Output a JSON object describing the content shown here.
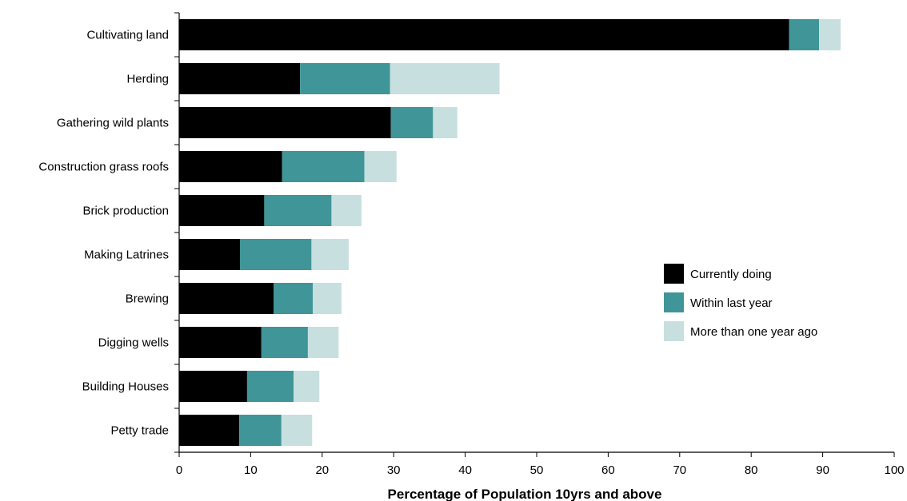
{
  "chart_data": {
    "type": "bar",
    "orientation": "horizontal",
    "stacked": true,
    "title": "",
    "xlabel": "Percentage of Population 10yrs and above",
    "ylabel": "",
    "xlim": [
      0,
      100
    ],
    "xticks": [
      0,
      10,
      20,
      30,
      40,
      50,
      60,
      70,
      80,
      90,
      100
    ],
    "grid": false,
    "legend_position": "right",
    "categories": [
      "Cultivating land",
      "Herding",
      "Gathering wild plants",
      "Construction grass roofs",
      "Brick production",
      "Making Latrines",
      "Brewing",
      "Digging wells",
      "Building Houses",
      "Petty trade"
    ],
    "series": [
      {
        "name": "Currently doing",
        "color": "#000000",
        "values": [
          85.3,
          16.9,
          29.6,
          14.4,
          11.9,
          8.5,
          13.2,
          11.5,
          9.5,
          8.4
        ]
      },
      {
        "name": "Within last year",
        "color": "#3f9597",
        "values": [
          4.2,
          12.6,
          5.9,
          11.5,
          9.4,
          10.0,
          5.5,
          6.5,
          6.5,
          5.9
        ]
      },
      {
        "name": "More than one year ago",
        "color": "#c7dfdf",
        "values": [
          3.0,
          15.3,
          3.4,
          4.5,
          4.2,
          5.2,
          4.0,
          4.3,
          3.6,
          4.3
        ]
      }
    ]
  }
}
